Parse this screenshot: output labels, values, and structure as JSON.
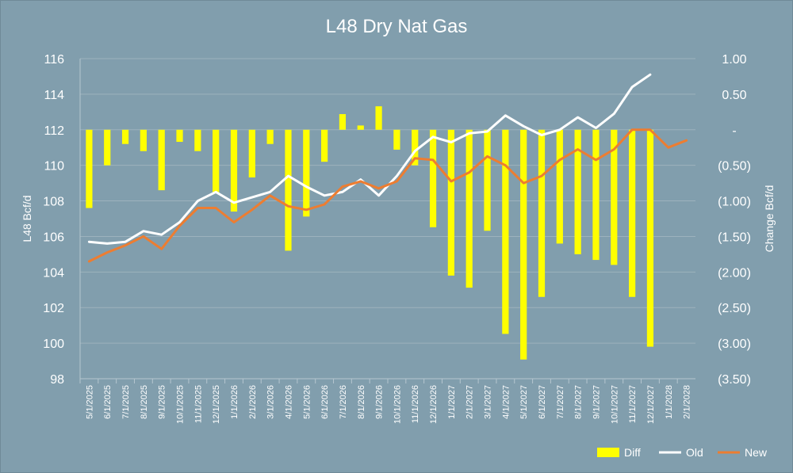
{
  "chart_data": {
    "type": "bar+line",
    "title": "L48 Dry Nat Gas",
    "ylabel_left": "L48 Bcf/d",
    "ylabel_right": "Change Bcf/d",
    "ylim_left": [
      98,
      116
    ],
    "ylim_right": [
      -3.5,
      1.0
    ],
    "yticks_left": [
      98,
      100,
      102,
      104,
      106,
      108,
      110,
      112,
      114,
      116
    ],
    "yticks_right": [
      1.0,
      0.5,
      0,
      -0.5,
      -1.0,
      -1.5,
      -2.0,
      -2.5,
      -3.0,
      -3.5
    ],
    "yticks_right_labels": [
      "1.00",
      "0.50",
      "-",
      "(0.50)",
      "(1.00)",
      "(1.50)",
      "(2.00)",
      "(2.50)",
      "(3.00)",
      "(3.50)"
    ],
    "categories": [
      "5/1/2025",
      "6/1/2025",
      "7/1/2025",
      "8/1/2025",
      "9/1/2025",
      "10/1/2025",
      "11/1/2025",
      "12/1/2025",
      "1/1/2026",
      "2/1/2026",
      "3/1/2026",
      "4/1/2026",
      "5/1/2026",
      "6/1/2026",
      "7/1/2026",
      "8/1/2026",
      "9/1/2026",
      "10/1/2026",
      "11/1/2026",
      "12/1/2026",
      "1/1/2027",
      "2/1/2027",
      "3/1/2027",
      "4/1/2027",
      "5/1/2027",
      "6/1/2027",
      "7/1/2027",
      "8/1/2027",
      "9/1/2027",
      "10/1/2027",
      "11/1/2027",
      "12/1/2027",
      "1/1/2028",
      "2/1/2028"
    ],
    "series": [
      {
        "name": "Diff",
        "type": "bar",
        "axis": "right",
        "color": "#ffff00",
        "values": [
          -1.1,
          -0.5,
          -0.2,
          -0.3,
          -0.85,
          -0.17,
          -0.3,
          -0.88,
          -1.15,
          -0.67,
          -0.2,
          -1.7,
          -1.22,
          -0.45,
          0.22,
          0.06,
          0.33,
          -0.28,
          -0.5,
          -1.37,
          -2.05,
          -2.22,
          -1.42,
          -2.87,
          -3.23,
          -2.35,
          -1.6,
          -1.75,
          -1.83,
          -1.9,
          -2.35,
          -3.05,
          null,
          null
        ]
      },
      {
        "name": "Old",
        "type": "line",
        "axis": "left",
        "color": "#ffffff",
        "values": [
          105.7,
          105.6,
          105.7,
          106.3,
          106.1,
          106.8,
          108.0,
          108.5,
          107.9,
          108.2,
          108.5,
          109.4,
          108.8,
          108.3,
          108.5,
          109.2,
          108.3,
          109.4,
          110.8,
          111.6,
          111.3,
          111.8,
          111.9,
          112.8,
          112.2,
          111.7,
          112.0,
          112.7,
          112.1,
          112.9,
          114.4,
          115.1,
          null,
          null
        ]
      },
      {
        "name": "New",
        "type": "line",
        "axis": "left",
        "color": "#ed7d31",
        "values": [
          104.6,
          105.1,
          105.5,
          106.0,
          105.3,
          106.6,
          107.6,
          107.6,
          106.8,
          107.5,
          108.3,
          107.7,
          107.5,
          107.8,
          108.8,
          109.1,
          108.7,
          109.1,
          110.4,
          110.3,
          109.1,
          109.6,
          110.5,
          110.0,
          109.0,
          109.4,
          110.3,
          110.9,
          110.3,
          110.9,
          112.0,
          112.0,
          111.0,
          111.4
        ]
      }
    ],
    "legend": [
      "Diff",
      "Old",
      "New"
    ],
    "legend_position": "bottom-right",
    "grid": true
  }
}
